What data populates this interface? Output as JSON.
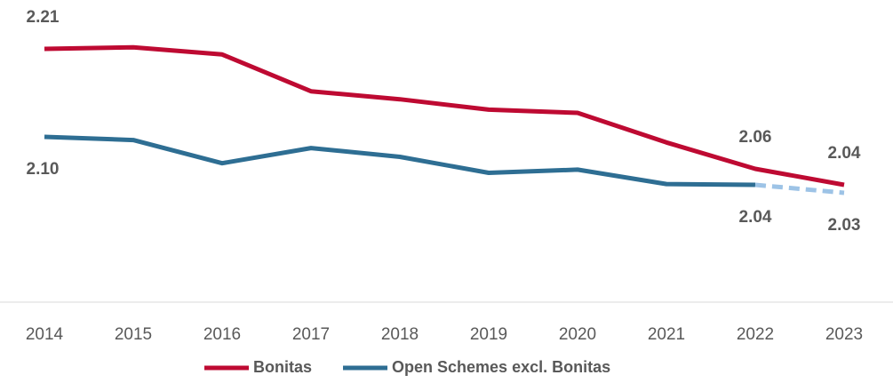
{
  "chart_data": {
    "type": "line",
    "categories": [
      "2014",
      "2015",
      "2016",
      "2017",
      "2018",
      "2019",
      "2020",
      "2021",
      "2022",
      "2023"
    ],
    "series": [
      {
        "name": "Bonitas",
        "color": "#be0a32",
        "label_position": "above",
        "values": [
          2.21,
          2.212,
          2.203,
          2.157,
          2.147,
          2.134,
          2.13,
          2.093,
          2.06,
          2.04
        ],
        "value_labels": [
          "2.21",
          null,
          null,
          null,
          null,
          null,
          null,
          null,
          "2.06",
          "2.04"
        ]
      },
      {
        "name": "Open Schemes excl. Bonitas",
        "color": "#2e6e93",
        "label_position": "below",
        "projection": {
          "from": "2022",
          "color": "#9dc3e6",
          "dashed": true
        },
        "values": [
          2.1,
          2.096,
          2.067,
          2.086,
          2.075,
          2.055,
          2.059,
          2.041,
          2.04,
          2.03
        ],
        "value_labels": [
          "2.10",
          null,
          null,
          null,
          null,
          null,
          null,
          null,
          "2.04",
          "2.03"
        ]
      }
    ],
    "ylim": [
      1.9,
      2.27
    ],
    "legend": "bottom"
  }
}
